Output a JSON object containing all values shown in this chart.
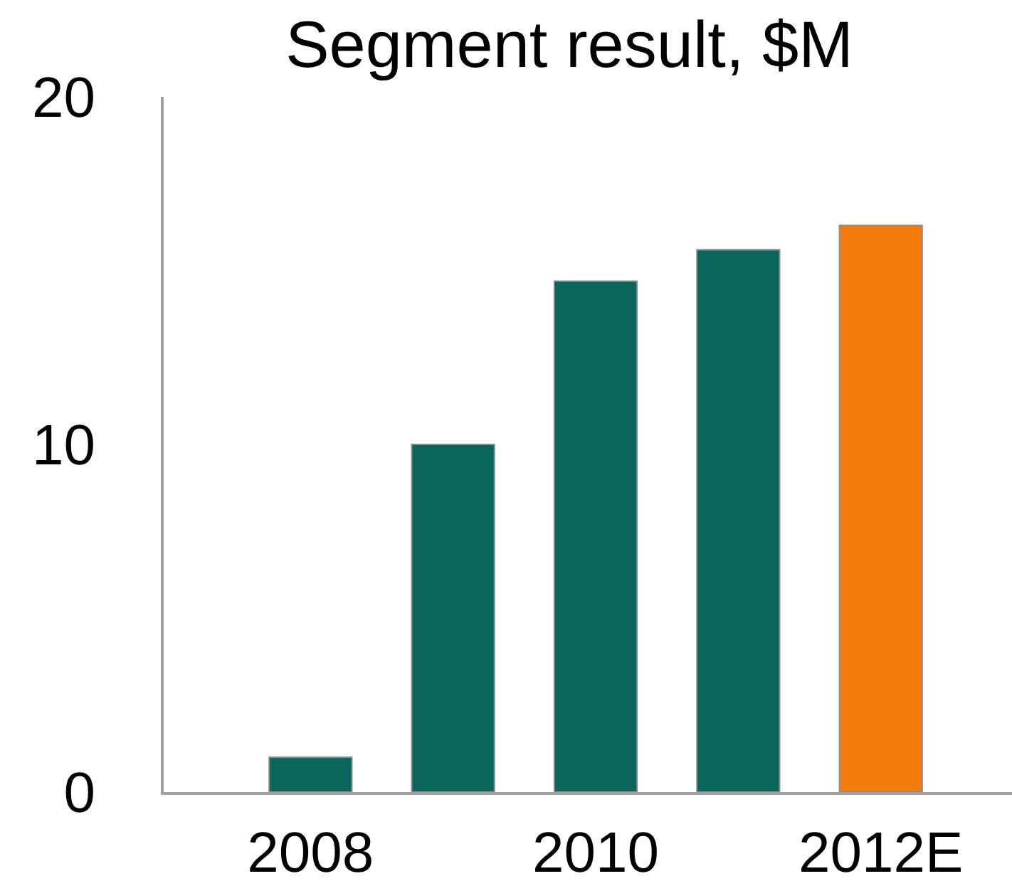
{
  "chart_data": {
    "type": "bar",
    "title": "Segment result, $M",
    "categories": [
      "2008",
      null,
      "2010",
      null,
      "2012E"
    ],
    "values": [
      1.0,
      10.0,
      14.7,
      15.6,
      16.3
    ],
    "colors": [
      "#0a665a",
      "#0a665a",
      "#0a665a",
      "#0a665a",
      "#f47c0c"
    ],
    "ylim": [
      0,
      20
    ],
    "yticks": [
      0,
      10,
      20
    ]
  }
}
